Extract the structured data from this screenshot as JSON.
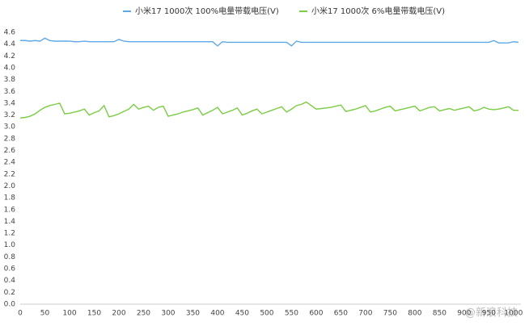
{
  "chart_data": {
    "type": "line",
    "series": [
      {
        "name": "小米17 1000次 100%电量带载电压(V)",
        "color": "#5fa8e8",
        "values": [
          4.46,
          4.46,
          4.45,
          4.46,
          4.45,
          4.5,
          4.46,
          4.45,
          4.45,
          4.45,
          4.45,
          4.44,
          4.44,
          4.45,
          4.44,
          4.44,
          4.44,
          4.44,
          4.44,
          4.44,
          4.48,
          4.45,
          4.44,
          4.44,
          4.44,
          4.44,
          4.44,
          4.44,
          4.44,
          4.44,
          4.44,
          4.44,
          4.44,
          4.44,
          4.44,
          4.44,
          4.44,
          4.44,
          4.44,
          4.44,
          4.37,
          4.44,
          4.43,
          4.43,
          4.43,
          4.43,
          4.43,
          4.43,
          4.43,
          4.43,
          4.43,
          4.43,
          4.43,
          4.43,
          4.43,
          4.37,
          4.45,
          4.43,
          4.43,
          4.43,
          4.43,
          4.43,
          4.43,
          4.43,
          4.43,
          4.43,
          4.43,
          4.43,
          4.43,
          4.43,
          4.43,
          4.43,
          4.43,
          4.43,
          4.43,
          4.43,
          4.43,
          4.43,
          4.43,
          4.43,
          4.43,
          4.43,
          4.43,
          4.43,
          4.43,
          4.43,
          4.43,
          4.43,
          4.43,
          4.43,
          4.43,
          4.43,
          4.43,
          4.43,
          4.43,
          4.43,
          4.46,
          4.42,
          4.42,
          4.42,
          4.44,
          4.43
        ]
      },
      {
        "name": "小米17 1000次  6%电量带载电压(V)",
        "color": "#7acc44",
        "values": [
          3.15,
          3.16,
          3.18,
          3.22,
          3.28,
          3.33,
          3.36,
          3.38,
          3.4,
          3.22,
          3.23,
          3.25,
          3.27,
          3.3,
          3.2,
          3.24,
          3.27,
          3.36,
          3.17,
          3.19,
          3.22,
          3.26,
          3.3,
          3.38,
          3.3,
          3.33,
          3.35,
          3.28,
          3.33,
          3.35,
          3.18,
          3.2,
          3.22,
          3.25,
          3.27,
          3.29,
          3.32,
          3.2,
          3.24,
          3.28,
          3.33,
          3.22,
          3.25,
          3.28,
          3.32,
          3.2,
          3.23,
          3.27,
          3.3,
          3.22,
          3.25,
          3.28,
          3.31,
          3.34,
          3.25,
          3.3,
          3.36,
          3.38,
          3.42,
          3.36,
          3.3,
          3.31,
          3.32,
          3.33,
          3.35,
          3.37,
          3.26,
          3.28,
          3.3,
          3.33,
          3.36,
          3.25,
          3.27,
          3.3,
          3.33,
          3.35,
          3.27,
          3.29,
          3.31,
          3.33,
          3.35,
          3.27,
          3.3,
          3.33,
          3.34,
          3.27,
          3.29,
          3.31,
          3.28,
          3.3,
          3.32,
          3.34,
          3.27,
          3.29,
          3.33,
          3.3,
          3.29,
          3.3,
          3.32,
          3.34,
          3.28,
          3.28
        ]
      }
    ],
    "x": [
      0,
      10,
      20,
      30,
      40,
      50,
      60,
      70,
      80,
      90,
      100,
      110,
      120,
      130,
      140,
      150,
      160,
      170,
      180,
      190,
      200,
      210,
      220,
      230,
      240,
      250,
      260,
      270,
      280,
      290,
      300,
      310,
      320,
      330,
      340,
      350,
      360,
      370,
      380,
      390,
      400,
      410,
      420,
      430,
      440,
      450,
      460,
      470,
      480,
      490,
      500,
      510,
      520,
      530,
      540,
      550,
      560,
      570,
      580,
      590,
      600,
      610,
      620,
      630,
      640,
      650,
      660,
      670,
      680,
      690,
      700,
      710,
      720,
      730,
      740,
      750,
      760,
      770,
      780,
      790,
      800,
      810,
      820,
      830,
      840,
      850,
      860,
      870,
      880,
      890,
      900,
      910,
      920,
      930,
      940,
      950,
      960,
      970,
      980,
      990,
      1000,
      1010
    ],
    "xlim": [
      0,
      1015
    ],
    "xticks": [
      0,
      50,
      100,
      150,
      200,
      250,
      300,
      350,
      400,
      450,
      500,
      550,
      600,
      650,
      700,
      750,
      800,
      850,
      900,
      950,
      1000
    ],
    "ylim": [
      0,
      4.6
    ],
    "yticks": [
      {
        "value": 0,
        "label": "0.0"
      },
      0.2,
      0.4,
      0.6,
      0.8,
      {
        "value": 1,
        "label": "1.0"
      },
      1.2,
      1.4,
      1.6,
      1.8,
      {
        "value": 2,
        "label": "2.0"
      },
      2.2,
      2.4,
      2.6,
      2.8,
      {
        "value": 3,
        "label": "3.0"
      },
      3.2,
      3.4,
      3.6,
      3.8,
      {
        "value": 4,
        "label": "4.0"
      },
      4.2,
      4.4,
      4.6
    ],
    "grid": false,
    "legend": "top",
    "watermark": "@新浪科技"
  }
}
